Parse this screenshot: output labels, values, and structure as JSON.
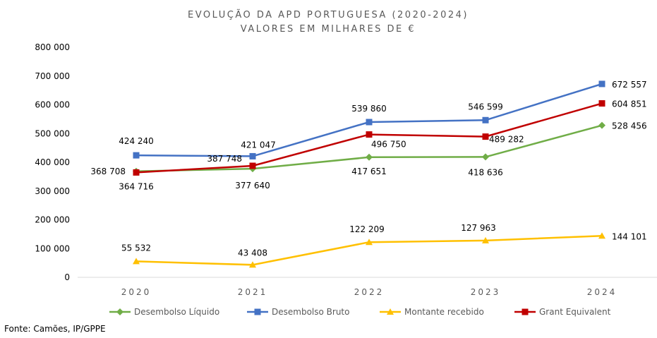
{
  "chart_data": {
    "type": "line",
    "title": "EVOLUÇÃO DA APD PORTUGUESA (2020-2024)",
    "subtitle": "VALORES EM MILHARES DE €",
    "categories": [
      "2020",
      "2021",
      "2022",
      "2023",
      "2024"
    ],
    "ylim": [
      0,
      800000
    ],
    "yticks": [
      0,
      100000,
      200000,
      300000,
      400000,
      500000,
      600000,
      700000,
      800000
    ],
    "ytick_labels": [
      "0",
      "100 000",
      "200 000",
      "300 000",
      "400 000",
      "500 000",
      "600 000",
      "700 000",
      "800 000"
    ],
    "grid": false,
    "legend_position": "bottom",
    "series": [
      {
        "name": "Desembolso Líquido",
        "color": "#70AD47",
        "marker": "diamond",
        "values": [
          368708,
          377640,
          417651,
          418636,
          528456
        ],
        "labels": [
          "368 708",
          "377 640",
          "417 651",
          "418 636",
          "528 456"
        ]
      },
      {
        "name": "Desembolso Bruto",
        "color": "#4472C4",
        "marker": "square",
        "values": [
          424240,
          421047,
          539860,
          546599,
          672557
        ],
        "labels": [
          "424 240",
          "421 047",
          "539 860",
          "546 599",
          "672 557"
        ]
      },
      {
        "name": "Montante recebido",
        "color": "#FFC000",
        "marker": "triangle",
        "values": [
          55532,
          43408,
          122209,
          127963,
          144101
        ],
        "labels": [
          "55 532",
          "43 408",
          "122 209",
          "127 963",
          "144 101"
        ]
      },
      {
        "name": "Grant Equivalent",
        "color": "#C00000",
        "marker": "square",
        "values": [
          364716,
          387748,
          496750,
          489282,
          604851
        ],
        "labels": [
          "364 716",
          "387 748",
          "496 750",
          "489 282",
          "604 851"
        ]
      }
    ]
  },
  "source": "Fonte: Camões, IP/GPPE"
}
